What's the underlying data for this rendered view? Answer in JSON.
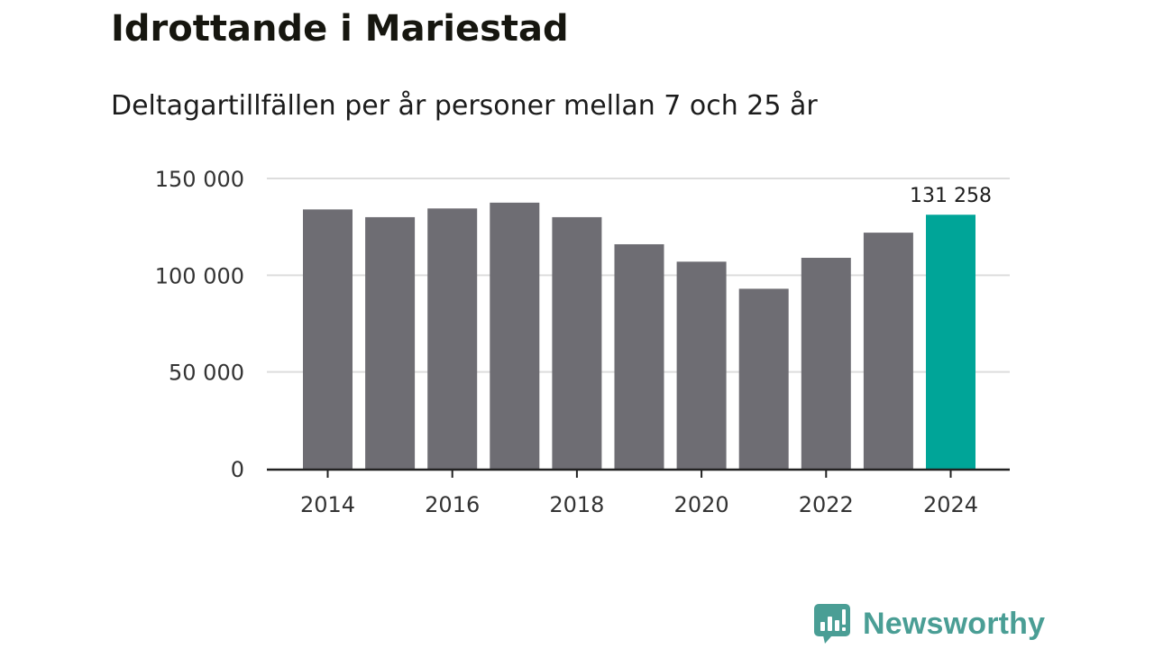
{
  "title": "Idrottande i Mariestad",
  "subtitle": "Deltagartillfällen per år personer mellan 7 och 25 år",
  "brand": {
    "name": "Newsworthy",
    "icon": "newsworthy-logo-icon"
  },
  "colors": {
    "bar": "#6e6d73",
    "highlight": "#00a598",
    "grid": "#dddddd",
    "axis": "#222222",
    "brand": "#4a9e95"
  },
  "chart_data": {
    "type": "bar",
    "title": "Idrottande i Mariestad",
    "subtitle": "Deltagartillfällen per år personer mellan 7 och 25 år",
    "xlabel": "",
    "ylabel": "",
    "categories": [
      "2014",
      "2015",
      "2016",
      "2017",
      "2018",
      "2019",
      "2020",
      "2021",
      "2022",
      "2023",
      "2024"
    ],
    "values": [
      134000,
      130000,
      134500,
      137500,
      130000,
      116000,
      107000,
      93000,
      109000,
      122000,
      131258
    ],
    "highlight_index": 10,
    "highlight_label": "131 258",
    "ylim": [
      0,
      150000
    ],
    "yticks": [
      0,
      50000,
      100000,
      150000
    ],
    "ytick_labels": [
      "0",
      "50 000",
      "100 000",
      "150 000"
    ],
    "xtick_labels": [
      "2014",
      "2016",
      "2018",
      "2020",
      "2022",
      "2024"
    ],
    "grid": true,
    "legend": "none"
  }
}
